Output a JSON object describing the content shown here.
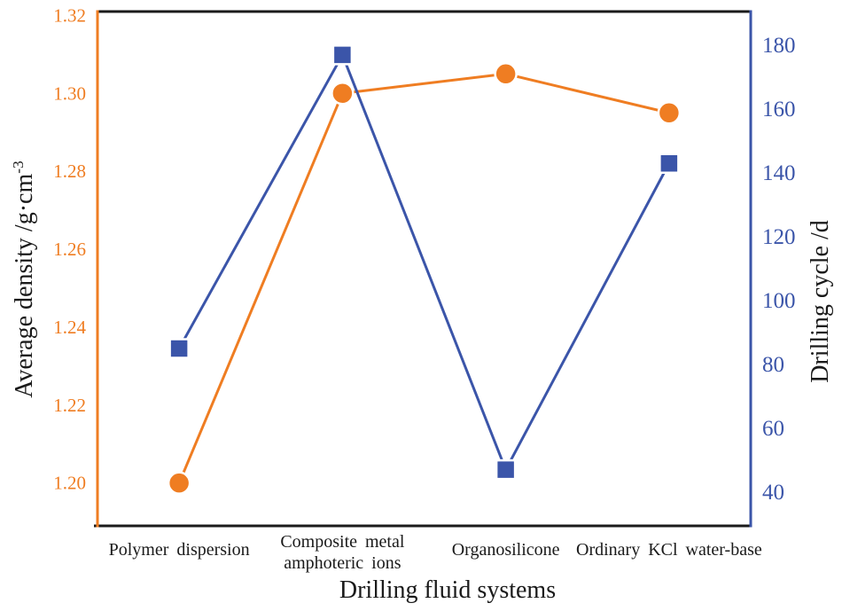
{
  "chart_data": {
    "type": "line",
    "title": "",
    "xlabel": "Drilling fluid systems",
    "grid": false,
    "legend": "none",
    "frame_color": "#1a1a1a",
    "categories": [
      "Polymer dispersion",
      "Composite metal\namphoteric ions",
      "Organosilicone",
      "Ordinary KCl water-base"
    ],
    "left_axis": {
      "label": "Average density /g·cm",
      "label_superscript": "-3",
      "color": "#EF7D22",
      "tick_labels": [
        "1.32",
        "1.30",
        "1.28",
        "1.26",
        "1.24",
        "1.22",
        "1.20"
      ],
      "tick_values": [
        1.32,
        1.3,
        1.28,
        1.26,
        1.24,
        1.22,
        1.2
      ],
      "ylim": [
        1.189,
        1.321
      ]
    },
    "right_axis": {
      "label": "Drilling cycle /d",
      "color": "#3B55A9",
      "tick_labels": [
        "180",
        "160",
        "140",
        "120",
        "100",
        "80",
        "60",
        "40"
      ],
      "tick_values": [
        180,
        160,
        140,
        120,
        100,
        80,
        60,
        40
      ],
      "ylim": [
        29.4,
        190.6
      ]
    },
    "series": [
      {
        "name": "Average density",
        "axis": "left",
        "marker": "circle",
        "color": "#EF7D22",
        "values": [
          1.2,
          1.3,
          1.305,
          1.295
        ]
      },
      {
        "name": "Drilling cycle",
        "axis": "right",
        "marker": "square",
        "color": "#3B55A9",
        "values": [
          85,
          177,
          47,
          143
        ]
      }
    ]
  }
}
